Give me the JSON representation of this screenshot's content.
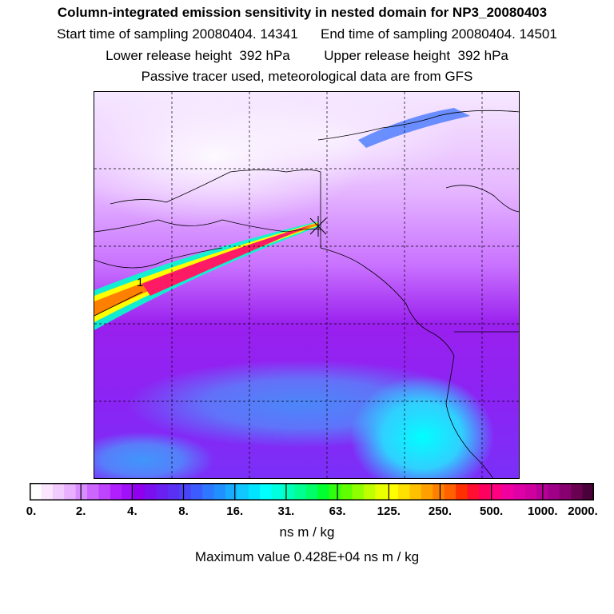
{
  "header": {
    "title": "Column-integrated emission sensitivity in nested domain for NP3_20080403",
    "sampling": "Start time of sampling 20080404. 14341      End time of sampling 20080404. 14501",
    "release": "Lower release height  392 hPa         Upper release height  392 hPa",
    "tracer": "Passive tracer used, meteorological data are from GFS"
  },
  "map": {
    "plume_label": "1",
    "colors": {
      "land_line": "#000000",
      "plume_core": "#ff1a66",
      "background_low": "#ffffff",
      "background_mid": "#a020f0",
      "background_high": "#00ffff"
    }
  },
  "colorbar": {
    "tick_labels": [
      "0.",
      "2.",
      "4.",
      "8.",
      "16.",
      "31.",
      "63.",
      "125.",
      "250.",
      "500.",
      "1000.",
      "2000."
    ],
    "colors": [
      "#ffffff",
      "#fbe6ff",
      "#f3ccff",
      "#e8b0ff",
      "#d98cff",
      "#cc66ff",
      "#bf44ff",
      "#b020ff",
      "#a010f8",
      "#9000ee",
      "#7a10f0",
      "#6a20f0",
      "#5a30f4",
      "#4a44f8",
      "#3c5cff",
      "#2e78ff",
      "#2090ff",
      "#18acff",
      "#10c8ff",
      "#00e4ff",
      "#00ffff",
      "#00ffdd",
      "#00ffb8",
      "#00ff90",
      "#00ff66",
      "#00ff30",
      "#30ff10",
      "#60ff00",
      "#90ff00",
      "#c0ff00",
      "#e8ff00",
      "#ffff00",
      "#ffe000",
      "#ffc000",
      "#ffa000",
      "#ff8000",
      "#ff6000",
      "#ff3000",
      "#ff1030",
      "#ff0060",
      "#ff0080",
      "#f000a0",
      "#e000a8",
      "#d000a0",
      "#b80098",
      "#a00088",
      "#880070",
      "#6a0050",
      "#4a0038"
    ],
    "units": "ns m / kg",
    "maximum": "Maximum value  0.428E+04 ns m / kg"
  }
}
